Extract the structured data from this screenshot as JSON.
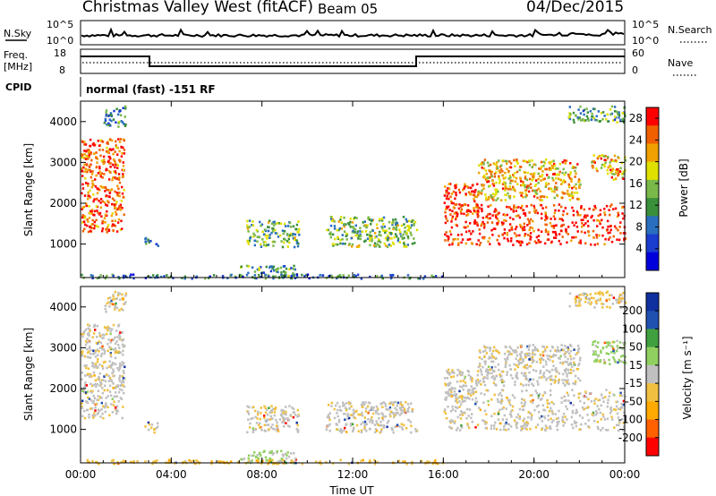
{
  "header": {
    "title": "Christmas Valley West (fitACF)",
    "beam": "Beam 05",
    "date": "04/Dec/2015"
  },
  "status_panels": {
    "nsky_label": "N.Sky",
    "nsearch_label": "N.Search",
    "ns_tick_high": "10^5",
    "ns_tick_low": "10^0",
    "freq_label_1": "Freq.",
    "freq_label_2": "[MHz]",
    "freq_ticks": [
      "18",
      "8"
    ],
    "nave_label": "Nave",
    "nave_ticks": [
      "60",
      "0"
    ],
    "cpid_label": "CPID",
    "cpid_text": "normal (fast) -151 RF"
  },
  "panels": {
    "ylabel": "Slant Range [km]",
    "xlabel": "Time UT"
  },
  "colors": {
    "power": [
      "#0000dd",
      "#1a3ccf",
      "#2a6fbf",
      "#3a8f3a",
      "#7ab84a",
      "#e0e000",
      "#f0a000",
      "#f06000",
      "#ff0000"
    ],
    "velocity": [
      "#ff0000",
      "#ff6000",
      "#ffaa00",
      "#f0c040",
      "#c0c0c0",
      "#90d060",
      "#40a040",
      "#2050b0",
      "#1030a0"
    ]
  },
  "chart_data": [
    {
      "type": "heatmap",
      "title": "Power",
      "ylabel": "Slant Range [km]",
      "xlabel": "",
      "x_ticks": [
        "00:00",
        "04:00",
        "08:00",
        "12:00",
        "16:00",
        "20:00",
        "00:00"
      ],
      "y_ticks": [
        "1000",
        "2000",
        "3000",
        "4000"
      ],
      "ylim": [
        180,
        4500
      ],
      "colorbar_label": "Power [dB]",
      "colorbar_ticks": [
        "4",
        "8",
        "12",
        "16",
        "20",
        "24",
        "28"
      ],
      "colorbar_range": [
        0,
        30
      ],
      "regions": [
        {
          "t0": 0.0,
          "t1": 1.9,
          "r0": 1300,
          "r1": 3600,
          "level": 0.85
        },
        {
          "t0": 1.0,
          "t1": 2.0,
          "r0": 3900,
          "r1": 4400,
          "level": 0.35
        },
        {
          "t0": 2.8,
          "t1": 3.4,
          "r0": 950,
          "r1": 1200,
          "level": 0.3
        },
        {
          "t0": 7.3,
          "t1": 9.6,
          "r0": 950,
          "r1": 1600,
          "level": 0.45
        },
        {
          "t0": 10.8,
          "t1": 14.8,
          "r0": 950,
          "r1": 1700,
          "level": 0.5
        },
        {
          "t0": 7.0,
          "t1": 9.5,
          "r0": 200,
          "r1": 500,
          "level": 0.4
        },
        {
          "t0": 0.0,
          "t1": 16.0,
          "r0": 180,
          "r1": 280,
          "level": 0.3
        },
        {
          "t0": 16.0,
          "t1": 24.0,
          "r0": 1000,
          "r1": 2000,
          "level": 0.95
        },
        {
          "t0": 16.0,
          "t1": 17.5,
          "r0": 1700,
          "r1": 2500,
          "level": 0.9
        },
        {
          "t0": 17.5,
          "t1": 22.0,
          "r0": 2100,
          "r1": 3100,
          "level": 0.7
        },
        {
          "t0": 22.5,
          "t1": 24.0,
          "r0": 2600,
          "r1": 3200,
          "level": 0.7
        },
        {
          "t0": 21.5,
          "t1": 24.0,
          "r0": 4000,
          "r1": 4400,
          "level": 0.4
        }
      ]
    },
    {
      "type": "heatmap",
      "title": "Velocity",
      "ylabel": "Slant Range [km]",
      "xlabel": "Time UT",
      "x_ticks": [
        "00:00",
        "04:00",
        "08:00",
        "12:00",
        "16:00",
        "20:00",
        "00:00"
      ],
      "y_ticks": [
        "1000",
        "2000",
        "3000",
        "4000"
      ],
      "ylim": [
        180,
        4500
      ],
      "colorbar_label": "Velocity [m s⁻¹]",
      "colorbar_ticks": [
        "200",
        "100",
        "50",
        "15",
        "-15",
        "-50",
        "-100",
        "-200"
      ],
      "regions": [
        {
          "t0": 0.0,
          "t1": 1.9,
          "r0": 1300,
          "r1": 3600,
          "vel": -5
        },
        {
          "t0": 1.0,
          "t1": 2.0,
          "r0": 3900,
          "r1": 4400,
          "vel": -20
        },
        {
          "t0": 2.8,
          "t1": 3.4,
          "r0": 950,
          "r1": 1200,
          "vel": -20
        },
        {
          "t0": 7.3,
          "t1": 9.6,
          "r0": 950,
          "r1": 1600,
          "vel": -5
        },
        {
          "t0": 10.8,
          "t1": 14.8,
          "r0": 950,
          "r1": 1700,
          "vel": -5
        },
        {
          "t0": 7.0,
          "t1": 9.5,
          "r0": 200,
          "r1": 500,
          "vel": 20
        },
        {
          "t0": 0.0,
          "t1": 16.0,
          "r0": 180,
          "r1": 280,
          "vel": -40
        },
        {
          "t0": 16.0,
          "t1": 24.0,
          "r0": 1000,
          "r1": 2000,
          "vel": -5
        },
        {
          "t0": 16.0,
          "t1": 17.5,
          "r0": 1700,
          "r1": 2500,
          "vel": -5
        },
        {
          "t0": 17.5,
          "t1": 22.0,
          "r0": 2100,
          "r1": 3100,
          "vel": -5
        },
        {
          "t0": 22.5,
          "t1": 24.0,
          "r0": 2600,
          "r1": 3200,
          "vel": 30
        },
        {
          "t0": 21.5,
          "t1": 24.0,
          "r0": 4000,
          "r1": 4400,
          "vel": -20
        }
      ]
    }
  ]
}
